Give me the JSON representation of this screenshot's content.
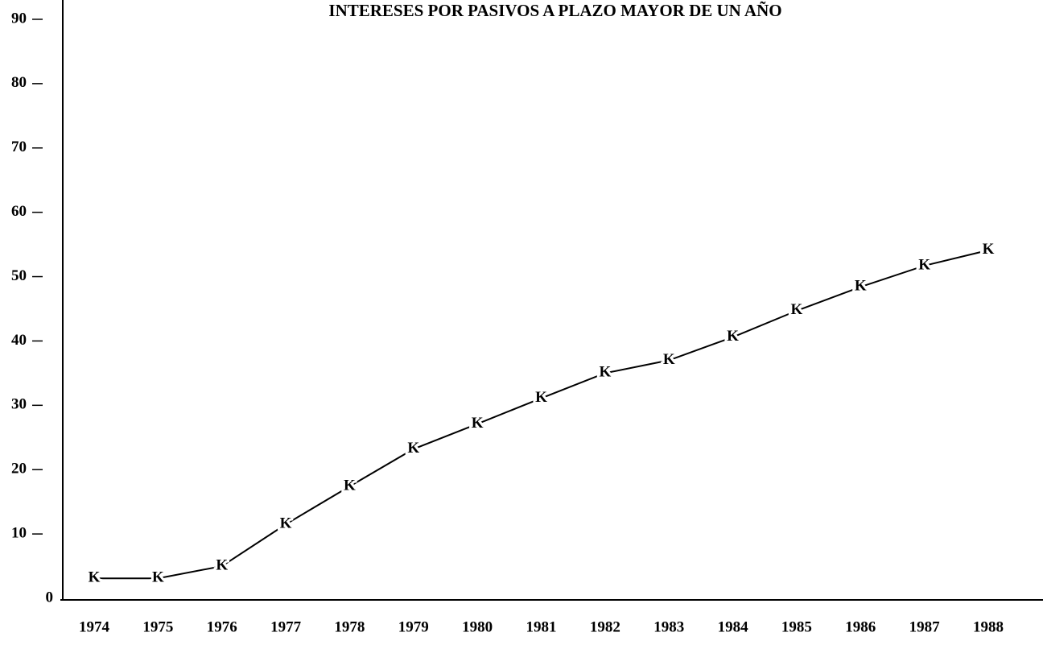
{
  "chart_data": {
    "type": "line",
    "title": "INTERESES POR PASIVOS A PLAZO MAYOR DE UN AÑO",
    "categories": [
      "1974",
      "1975",
      "1976",
      "1977",
      "1978",
      "1979",
      "1980",
      "1981",
      "1982",
      "1983",
      "1984",
      "1985",
      "1986",
      "1987",
      "1988"
    ],
    "values": [
      3.1,
      3.1,
      5,
      11.5,
      17.4,
      23.2,
      27.1,
      31.1,
      35,
      37,
      40.6,
      44.7,
      48.4,
      51.7,
      54.1
    ],
    "marker": "K",
    "color": "#000000",
    "ylim": [
      0,
      93
    ],
    "yticks": [
      0,
      10,
      20,
      30,
      40,
      50,
      60,
      70,
      80,
      90
    ],
    "grid": false
  }
}
